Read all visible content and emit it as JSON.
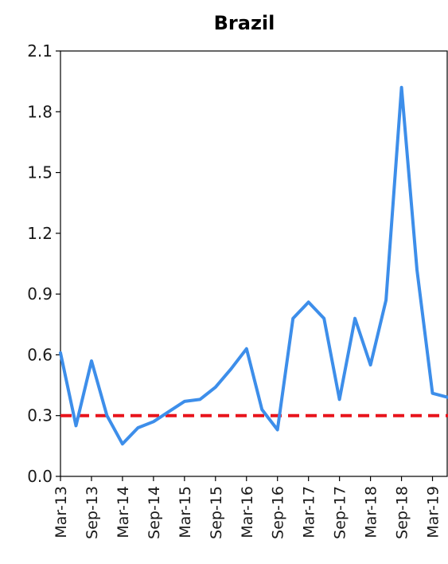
{
  "chart_data": {
    "type": "line",
    "title": "Brazil",
    "xlabel": "",
    "ylabel": "",
    "ylim": [
      0.0,
      2.1
    ],
    "yticks": [
      "0.0",
      "0.3",
      "0.6",
      "0.9",
      "1.2",
      "1.5",
      "1.8",
      "2.1"
    ],
    "xtick_labels": [
      "Mar-13",
      "Sep-13",
      "Mar-14",
      "Sep-14",
      "Mar-15",
      "Sep-15",
      "Mar-16",
      "Sep-16",
      "Mar-17",
      "Sep-17",
      "Mar-18",
      "Sep-18",
      "Mar-19"
    ],
    "x": [
      "Mar-13",
      "Jun-13",
      "Sep-13",
      "Dec-13",
      "Mar-14",
      "Jun-14",
      "Sep-14",
      "Dec-14",
      "Mar-15",
      "Jun-15",
      "Sep-15",
      "Dec-15",
      "Mar-16",
      "Jun-16",
      "Sep-16",
      "Dec-16",
      "Mar-17",
      "Jun-17",
      "Sep-17",
      "Dec-17",
      "Mar-18",
      "Jun-18",
      "Sep-18",
      "Dec-18",
      "Mar-19",
      "Jun-19"
    ],
    "series": [
      {
        "values": [
          0.61,
          0.25,
          0.57,
          0.3,
          0.16,
          0.24,
          0.27,
          0.32,
          0.37,
          0.38,
          0.44,
          0.53,
          0.63,
          0.33,
          0.23,
          0.78,
          0.86,
          0.78,
          0.38,
          0.78,
          0.55,
          0.87,
          1.92,
          1.02,
          0.41,
          0.39
        ],
        "color": "#3d8eea"
      }
    ],
    "reference_line": {
      "value": 0.3,
      "color": "#e8141c",
      "style": "dashed"
    },
    "grid": false
  }
}
